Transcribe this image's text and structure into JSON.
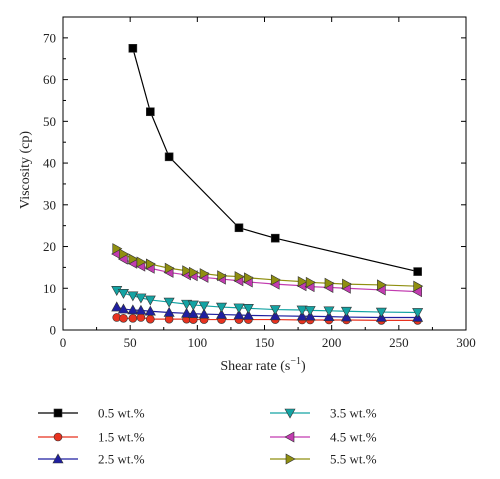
{
  "chart_data": {
    "type": "line",
    "title": "",
    "xlabel": "Shear rate (s",
    "xlabel_sup": "−1",
    "xlabel_close": ")",
    "ylabel": "Viscosity (cp)",
    "xlim": [
      0,
      300
    ],
    "ylim": [
      0,
      75
    ],
    "xticks": [
      0,
      50,
      100,
      150,
      200,
      250,
      300
    ],
    "yticks": [
      0,
      10,
      20,
      30,
      40,
      50,
      60,
      70
    ],
    "grid": false,
    "legend_position": "below-plot",
    "series": [
      {
        "name": "0.5 wt.%",
        "marker": "square",
        "color": "#000000",
        "x": [
          52,
          65,
          79,
          131,
          158,
          264
        ],
        "y": [
          67.5,
          52.3,
          41.5,
          24.5,
          22.0,
          14.0
        ]
      },
      {
        "name": "1.5 wt.%",
        "marker": "circle",
        "color": "#e8321f",
        "x": [
          40,
          45,
          52,
          58,
          65,
          79,
          92,
          97,
          105,
          118,
          131,
          138,
          158,
          178,
          184,
          198,
          211,
          237,
          264
        ],
        "y": [
          3.0,
          2.8,
          2.8,
          3.0,
          2.6,
          2.6,
          2.6,
          2.5,
          2.5,
          2.5,
          2.5,
          2.5,
          2.5,
          2.4,
          2.4,
          2.4,
          2.4,
          2.3,
          2.3
        ]
      },
      {
        "name": "2.5 wt.%",
        "marker": "triangle-up",
        "color": "#1f1fa0",
        "x": [
          40,
          45,
          52,
          58,
          65,
          79,
          92,
          97,
          105,
          118,
          131,
          138,
          158,
          178,
          184,
          198,
          211,
          237,
          264
        ],
        "y": [
          5.5,
          5.0,
          4.8,
          4.7,
          4.5,
          4.2,
          4.0,
          3.9,
          3.8,
          3.7,
          3.6,
          3.5,
          3.4,
          3.3,
          3.3,
          3.2,
          3.1,
          3.0,
          3.0
        ]
      },
      {
        "name": "3.5 wt.%",
        "marker": "triangle-down",
        "color": "#14a3a3",
        "x": [
          40,
          45,
          52,
          58,
          65,
          79,
          92,
          97,
          105,
          118,
          131,
          138,
          158,
          178,
          184,
          198,
          211,
          237,
          264
        ],
        "y": [
          9.5,
          8.8,
          8.2,
          7.7,
          7.2,
          6.7,
          6.2,
          6.0,
          5.8,
          5.5,
          5.3,
          5.2,
          4.9,
          4.8,
          4.7,
          4.6,
          4.5,
          4.3,
          4.2
        ]
      },
      {
        "name": "4.5 wt.%",
        "marker": "triangle-left",
        "color": "#c23bb0",
        "x": [
          40,
          45,
          52,
          58,
          65,
          79,
          92,
          97,
          105,
          118,
          131,
          138,
          158,
          178,
          184,
          198,
          211,
          237,
          264
        ],
        "y": [
          18.2,
          17.0,
          16.0,
          15.3,
          14.8,
          13.8,
          13.2,
          13.0,
          12.6,
          12.2,
          11.8,
          11.5,
          11.0,
          10.6,
          10.4,
          10.2,
          10.0,
          9.6,
          9.2
        ]
      },
      {
        "name": "5.5 wt.%",
        "marker": "triangle-right",
        "color": "#8f8f10",
        "x": [
          40,
          45,
          52,
          58,
          65,
          79,
          92,
          97,
          105,
          118,
          131,
          138,
          158,
          178,
          184,
          198,
          211,
          237,
          264
        ],
        "y": [
          19.5,
          18.2,
          17.0,
          16.3,
          15.8,
          14.8,
          14.2,
          13.8,
          13.5,
          13.0,
          12.8,
          12.5,
          12.0,
          11.6,
          11.4,
          11.2,
          11.0,
          10.8,
          10.5
        ]
      }
    ]
  }
}
